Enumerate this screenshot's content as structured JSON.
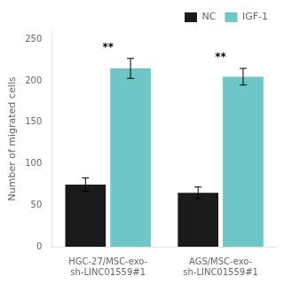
{
  "chart_data": {
    "type": "bar",
    "ylabel": "Number of migrated cells",
    "categories": [
      "HGC-27/MSC-exo-\nsh-LINC01559#1",
      "AGS/MSC-exo-\nsh-LINC01559#1"
    ],
    "series": [
      {
        "name": "NC",
        "color": "#1a1a1a",
        "values": [
          75,
          65
        ],
        "errors": [
          8,
          7
        ]
      },
      {
        "name": "IGF-1",
        "color": "#6ec6c6",
        "values": [
          215,
          205
        ],
        "errors": [
          12,
          10
        ]
      }
    ],
    "annotations": [
      {
        "category": "HGC-27/MSC-exo-\nsh-LINC01559#1",
        "text": "**"
      },
      {
        "category": "AGS/MSC-exo-\nsh-LINC01559#1",
        "text": "**"
      }
    ],
    "ylim": [
      0,
      260
    ],
    "yticks": [
      0,
      50,
      100,
      150,
      200,
      250
    ],
    "grid": false,
    "legend": "upper right",
    "data_labels": false
  }
}
